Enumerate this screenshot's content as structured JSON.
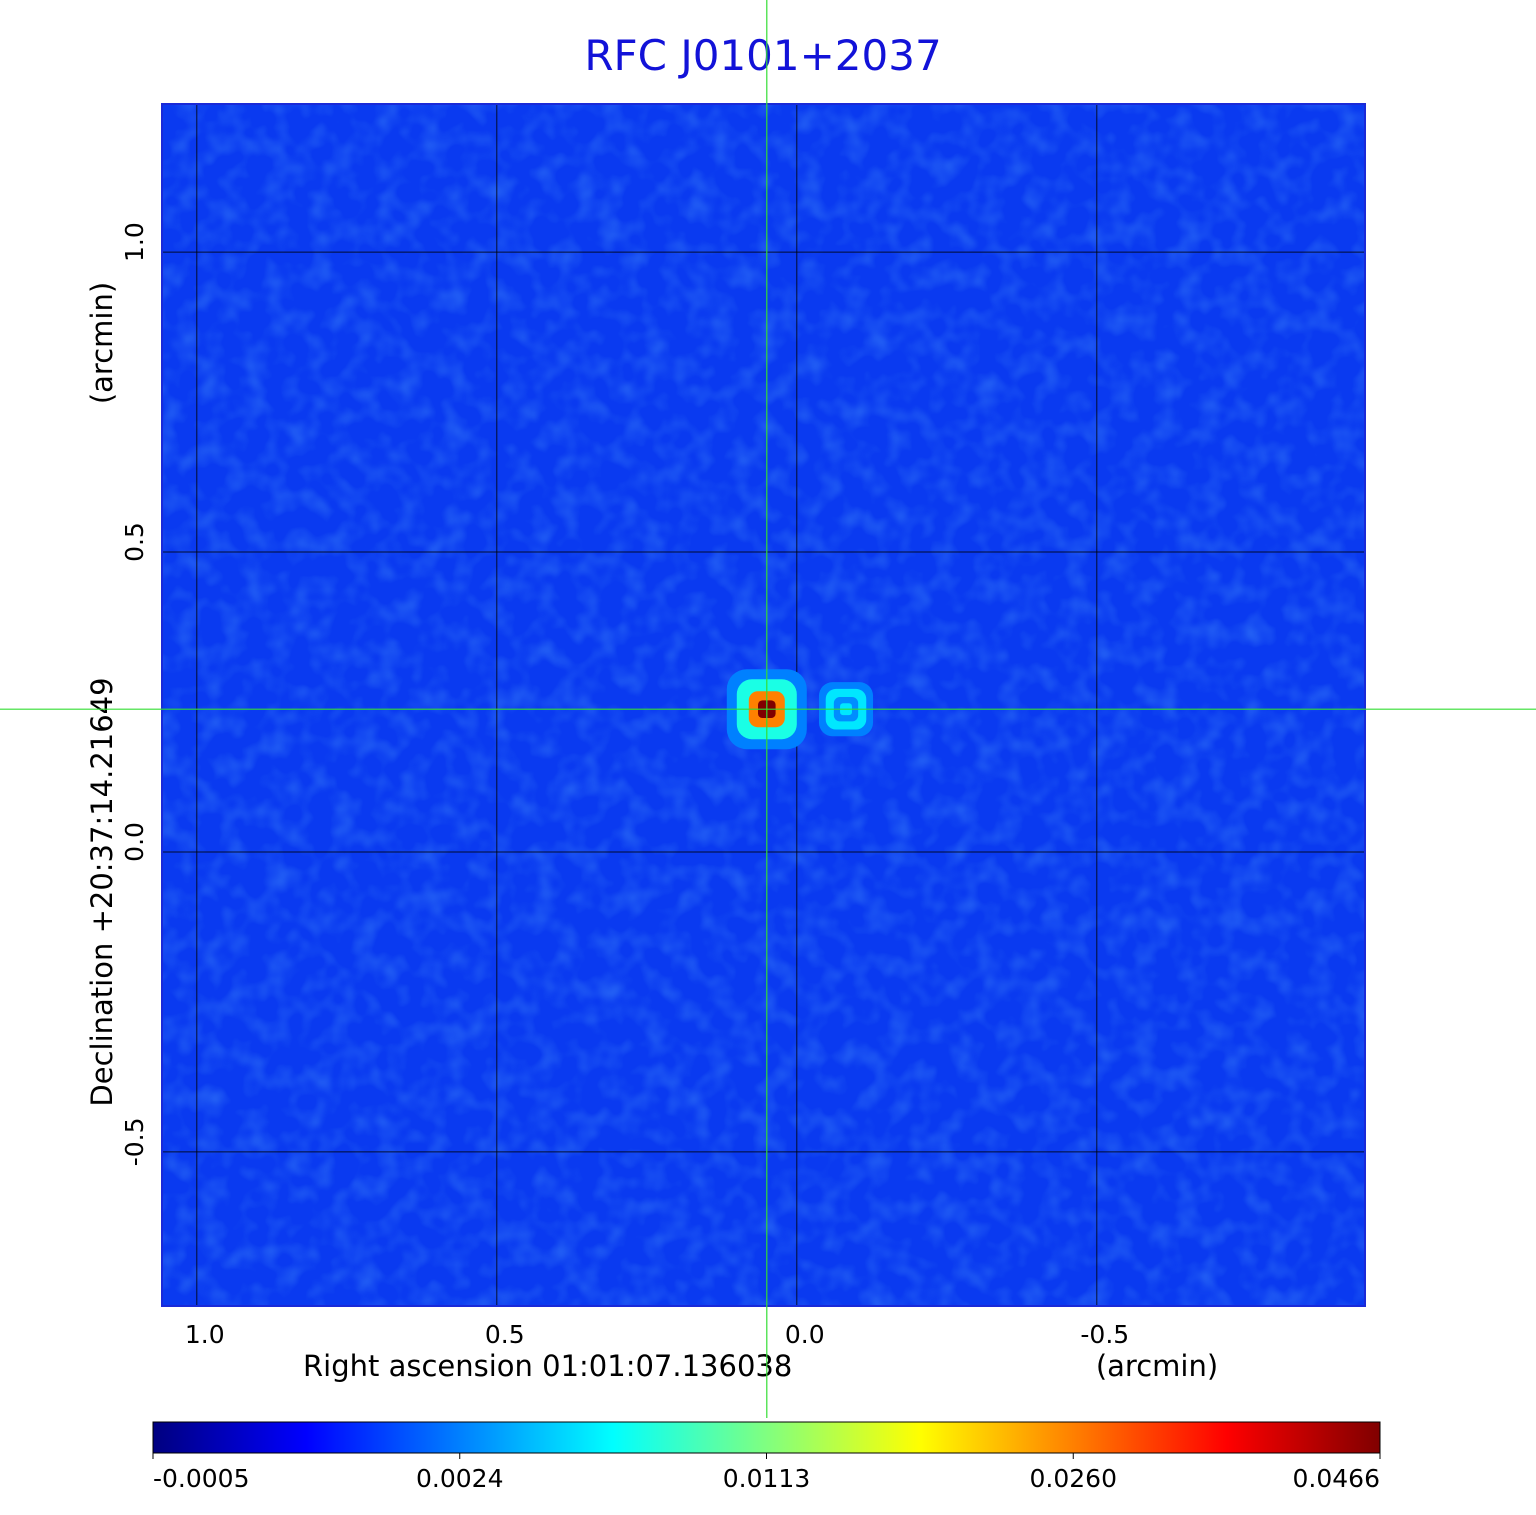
{
  "chart_data": {
    "type": "image",
    "title": "RFC J0101+2037",
    "x_label": "Right ascension  01:01:07.136038",
    "x_unit": "(arcmin)",
    "y_label": "Declination  +20:37:14.21649",
    "y_unit": "(arcmin)",
    "xlim": [
      1.058,
      -0.947
    ],
    "ylim": [
      -0.757,
      1.247
    ],
    "xticks": [
      {
        "value": 1,
        "label": "1.0"
      },
      0.5,
      {
        "value": 0,
        "label": "0.0"
      },
      -0.5
    ],
    "yticks": [
      {
        "value": 1,
        "label": "1.0"
      },
      0.5,
      {
        "value": 0,
        "label": "0.0"
      },
      -0.5
    ],
    "grid": true,
    "crosshair": [
      0.05,
      0.238
    ],
    "sources": {
      "x": [
        0.05,
        -0.082
      ],
      "y": [
        0.238,
        0.238
      ],
      "values": [
        0.0466,
        0.006
      ]
    },
    "colorbar_ticks": [
      -0.0005,
      0.0024,
      0.0113,
      {
        "value": 0.026,
        "label": "0.0260"
      },
      0.0466
    ],
    "colormap": "jet"
  }
}
